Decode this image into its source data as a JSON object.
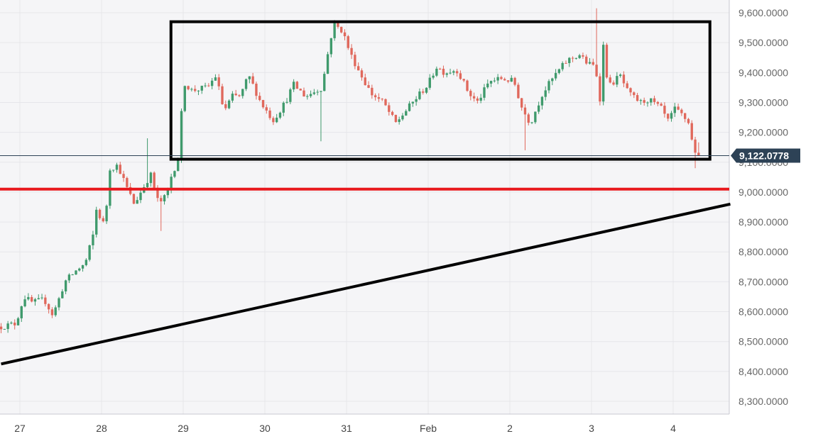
{
  "chart_data": {
    "type": "candlestick",
    "x_tick_labels": [
      "27",
      "28",
      "29",
      "30",
      "31",
      "Feb",
      "2",
      "3",
      "4"
    ],
    "y_tick_labels": [
      "9,600.0000",
      "9,500.0000",
      "9,400.0000",
      "9,300.0000",
      "9,200.0000",
      "9,100.0000",
      "9,000.0000",
      "8,900.0000",
      "8,800.0000",
      "8,700.0000",
      "8,600.0000",
      "8,500.0000",
      "8,400.0000",
      "8,300.0000"
    ],
    "y_ticks": [
      9600,
      9500,
      9400,
      9300,
      9200,
      9100,
      9000,
      8900,
      8800,
      8700,
      8600,
      8500,
      8400,
      8300
    ],
    "ylim": [
      8260,
      9640
    ],
    "xlim": [
      26.77,
      35.7
    ],
    "last_price": 9122.0778,
    "last_price_label": "9,122.0778",
    "anchors": [
      [
        26.77,
        8550
      ],
      [
        26.95,
        8560
      ],
      [
        27.05,
        8650
      ],
      [
        27.15,
        8630
      ],
      [
        27.3,
        8640
      ],
      [
        27.4,
        8590
      ],
      [
        27.45,
        8620
      ],
      [
        27.55,
        8700
      ],
      [
        27.7,
        8740
      ],
      [
        27.8,
        8760
      ],
      [
        27.9,
        8860
      ],
      [
        27.95,
        8970
      ],
      [
        28.0,
        8880
      ],
      [
        28.05,
        8920
      ],
      [
        28.1,
        9080
      ],
      [
        28.2,
        9090
      ],
      [
        28.3,
        9020
      ],
      [
        28.4,
        8960
      ],
      [
        28.5,
        9010
      ],
      [
        28.6,
        9060
      ],
      [
        28.7,
        8960
      ],
      [
        28.8,
        8990
      ],
      [
        28.85,
        9050
      ],
      [
        28.95,
        9120
      ],
      [
        29.0,
        9370
      ],
      [
        29.1,
        9340
      ],
      [
        29.3,
        9350
      ],
      [
        29.4,
        9390
      ],
      [
        29.5,
        9270
      ],
      [
        29.6,
        9320
      ],
      [
        29.7,
        9320
      ],
      [
        29.8,
        9390
      ],
      [
        29.95,
        9300
      ],
      [
        30.1,
        9240
      ],
      [
        30.25,
        9300
      ],
      [
        30.35,
        9360
      ],
      [
        30.5,
        9320
      ],
      [
        30.7,
        9350
      ],
      [
        30.8,
        9510
      ],
      [
        30.85,
        9560
      ],
      [
        30.95,
        9540
      ],
      [
        31.05,
        9460
      ],
      [
        31.2,
        9380
      ],
      [
        31.3,
        9330
      ],
      [
        31.45,
        9300
      ],
      [
        31.6,
        9230
      ],
      [
        31.75,
        9280
      ],
      [
        31.9,
        9330
      ],
      [
        32.0,
        9360
      ],
      [
        32.1,
        9420
      ],
      [
        32.2,
        9400
      ],
      [
        32.35,
        9410
      ],
      [
        32.5,
        9330
      ],
      [
        32.6,
        9300
      ],
      [
        32.75,
        9370
      ],
      [
        32.9,
        9380
      ],
      [
        33.05,
        9370
      ],
      [
        33.15,
        9280
      ],
      [
        33.25,
        9230
      ],
      [
        33.4,
        9330
      ],
      [
        33.55,
        9390
      ],
      [
        33.7,
        9440
      ],
      [
        33.85,
        9460
      ],
      [
        33.95,
        9430
      ],
      [
        34.05,
        9420
      ],
      [
        34.1,
        9300
      ],
      [
        34.15,
        9510
      ],
      [
        34.2,
        9350
      ],
      [
        34.35,
        9390
      ],
      [
        34.45,
        9330
      ],
      [
        34.6,
        9300
      ],
      [
        34.7,
        9310
      ],
      [
        34.85,
        9280
      ],
      [
        34.95,
        9230
      ],
      [
        35.0,
        9280
      ],
      [
        35.1,
        9260
      ],
      [
        35.2,
        9230
      ],
      [
        35.25,
        9130
      ],
      [
        35.3,
        9150
      ],
      [
        35.35,
        9122
      ]
    ],
    "notable_wicks": [
      {
        "x": 30.67,
        "low": 9170
      },
      {
        "x": 33.2,
        "low": 9140
      },
      {
        "x": 34.05,
        "high": 9615
      },
      {
        "x": 28.72,
        "low": 8870
      },
      {
        "x": 28.58,
        "high": 9180
      },
      {
        "x": 35.25,
        "low": 9080
      }
    ],
    "annotations": {
      "horizontal_line": {
        "y": 9010,
        "color": "#e8191e"
      },
      "range_box": {
        "x_start": 28.85,
        "x_end": 35.45,
        "y_low": 9110,
        "y_high": 9570,
        "color": "#000000"
      },
      "trend_line": {
        "x_start": 26.77,
        "y_start": 8425,
        "x_end": 35.7,
        "y_end": 8960,
        "color": "#000000"
      }
    },
    "colors": {
      "up": "#3f9a6c",
      "down": "#e0685c",
      "background": "#f5f5f7",
      "grid": "#e6e6ea",
      "axis_text": "#666666",
      "price_tag": "#2d4256",
      "price_line": "#2d4256"
    },
    "grid": true
  }
}
